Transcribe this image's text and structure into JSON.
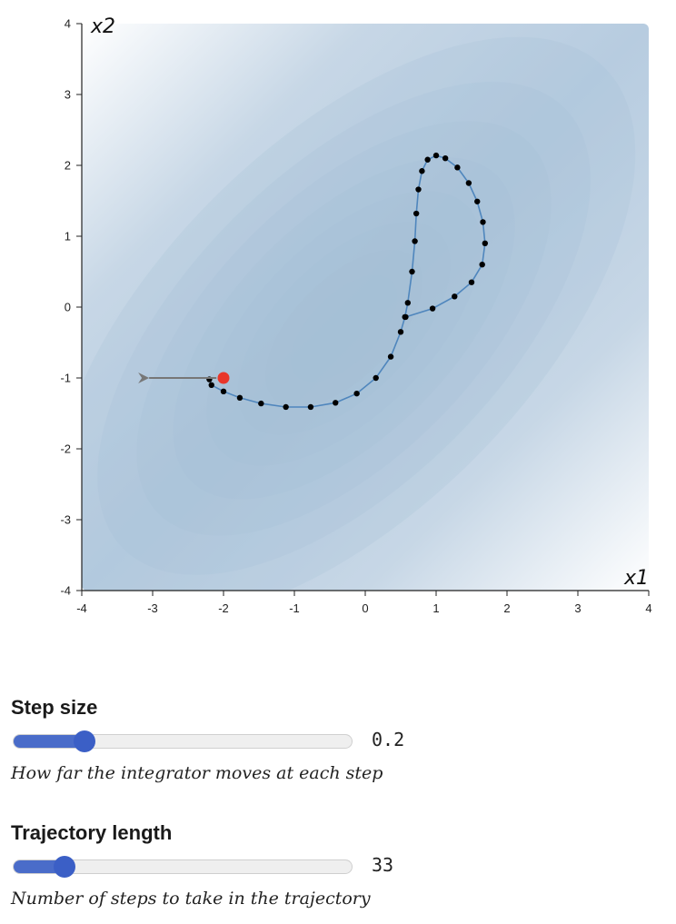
{
  "chart_data": {
    "type": "contour-trajectory",
    "xlabel": "x1",
    "ylabel": "x2",
    "xlim": [
      -4,
      4
    ],
    "ylim": [
      -4,
      4
    ],
    "x_ticks": [
      "-4",
      "-3",
      "-2",
      "-1",
      "0",
      "1",
      "2",
      "3",
      "4"
    ],
    "y_ticks": [
      "4",
      "3",
      "2",
      "1",
      "0",
      "-1",
      "-2",
      "-3",
      "-4"
    ],
    "x_tick_values": [
      -4,
      -3,
      -2,
      -1,
      0,
      1,
      2,
      3,
      4
    ],
    "y_tick_values": [
      4,
      3,
      2,
      1,
      0,
      -1,
      -2,
      -3,
      -4
    ],
    "contour_center": [
      -0.3,
      -0.3
    ],
    "contour_fill_color": "#a6bfd6",
    "trajectory_color": "#4f86bd",
    "point_color": "#000000",
    "start_point": {
      "x": -2.0,
      "y": -1.0,
      "color": "#e8362a"
    },
    "momentum_arrow": {
      "from": [
        -2.1,
        -1.0
      ],
      "to": [
        -3.05,
        -1.0
      ],
      "color": "#777777"
    },
    "trajectory": [
      {
        "x": -2.2,
        "y": -1.02
      },
      {
        "x": -2.17,
        "y": -1.1
      },
      {
        "x": -2.0,
        "y": -1.19
      },
      {
        "x": -1.77,
        "y": -1.28
      },
      {
        "x": -1.47,
        "y": -1.36
      },
      {
        "x": -1.12,
        "y": -1.41
      },
      {
        "x": -0.77,
        "y": -1.41
      },
      {
        "x": -0.42,
        "y": -1.35
      },
      {
        "x": -0.12,
        "y": -1.22
      },
      {
        "x": 0.15,
        "y": -1.0
      },
      {
        "x": 0.36,
        "y": -0.7
      },
      {
        "x": 0.5,
        "y": -0.35
      },
      {
        "x": 0.56,
        "y": -0.14
      },
      {
        "x": 0.6,
        "y": 0.06
      },
      {
        "x": 0.66,
        "y": 0.5
      },
      {
        "x": 0.7,
        "y": 0.93
      },
      {
        "x": 0.72,
        "y": 1.32
      },
      {
        "x": 0.75,
        "y": 1.66
      },
      {
        "x": 0.8,
        "y": 1.92
      },
      {
        "x": 0.88,
        "y": 2.08
      },
      {
        "x": 1.0,
        "y": 2.14
      },
      {
        "x": 1.13,
        "y": 2.1
      },
      {
        "x": 1.3,
        "y": 1.97
      },
      {
        "x": 1.46,
        "y": 1.75
      },
      {
        "x": 1.58,
        "y": 1.49
      },
      {
        "x": 1.66,
        "y": 1.2
      },
      {
        "x": 1.69,
        "y": 0.9
      },
      {
        "x": 1.65,
        "y": 0.6
      },
      {
        "x": 1.5,
        "y": 0.35
      },
      {
        "x": 1.26,
        "y": 0.15
      },
      {
        "x": 0.95,
        "y": -0.02
      },
      {
        "x": 0.57,
        "y": -0.14
      }
    ]
  },
  "controls": {
    "step_size": {
      "label": "Step size",
      "value": "0.2",
      "fraction": 0.21,
      "description": "How far the integrator moves at each step"
    },
    "trajectory_length": {
      "label": "Trajectory length",
      "value": "33",
      "fraction": 0.15,
      "description": "Number of steps to take in the trajectory"
    }
  }
}
